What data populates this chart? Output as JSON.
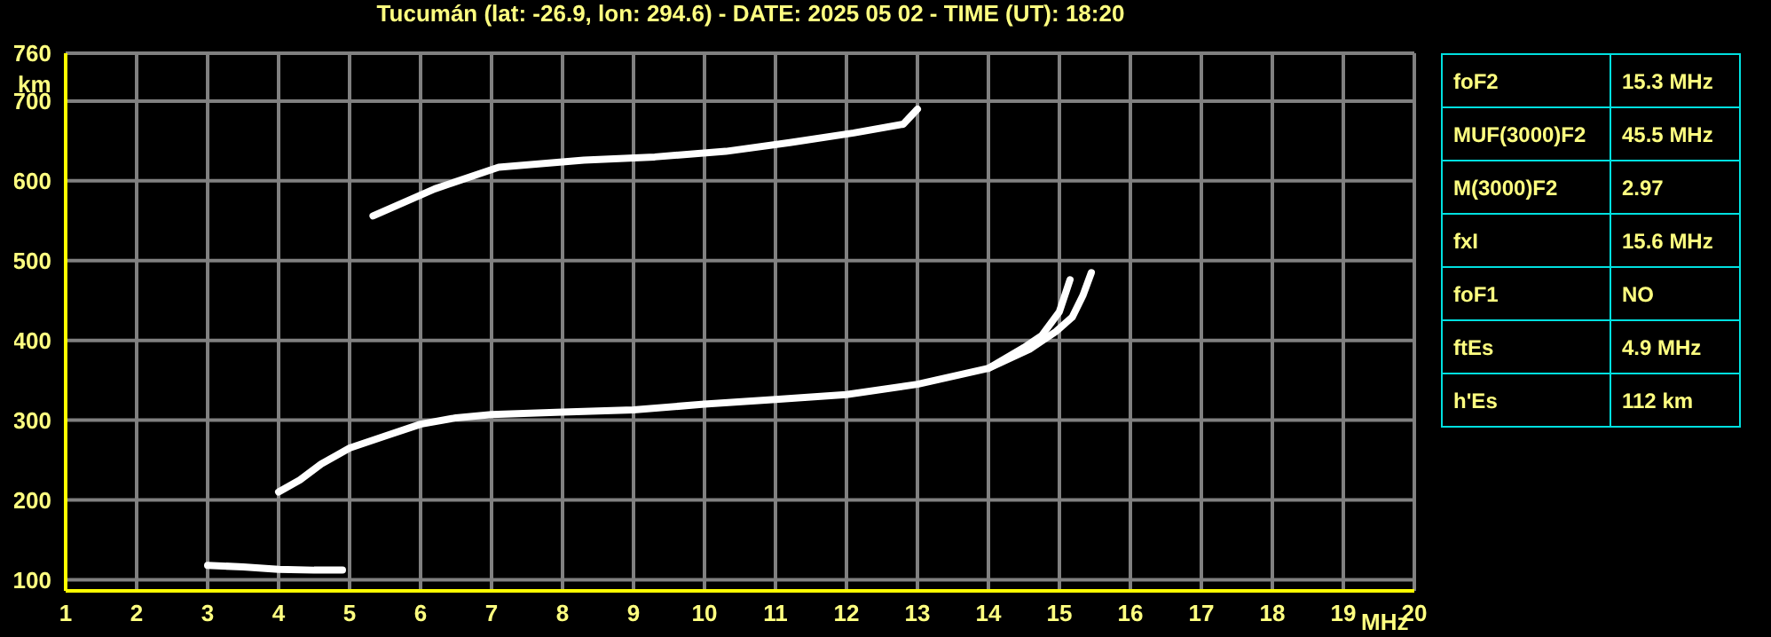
{
  "chart_data": [
    {
      "type": "line",
      "title": "Tucumán (lat: -26.9, lon: 294.6) - DATE: 2025 05 02 - TIME (UT): 18:20",
      "xlabel": "MHz",
      "ylabel": "km",
      "xlim": [
        1,
        20
      ],
      "ylim": [
        86,
        760
      ],
      "xticks": [
        1,
        2,
        3,
        4,
        5,
        6,
        7,
        8,
        9,
        10,
        11,
        12,
        13,
        14,
        15,
        16,
        17,
        18,
        19,
        20
      ],
      "yticks": [
        100,
        200,
        300,
        400,
        500,
        600,
        700,
        760
      ],
      "grid": true,
      "legend": false,
      "marker": "none",
      "line_style": "solid",
      "series": [
        {
          "color": "#ffffff",
          "x": [
            4.0,
            4.3,
            4.6,
            5.0,
            5.5,
            6.0,
            6.5,
            7.0,
            8.0,
            9.0,
            10.0,
            11.0,
            12.0,
            13.0,
            13.5,
            14.0,
            14.5,
            14.75,
            15.0,
            15.15
          ],
          "values": [
            210,
            225,
            245,
            265,
            280,
            295,
            303,
            307,
            310,
            313,
            320,
            326,
            332,
            345,
            355,
            365,
            391,
            406,
            436,
            476
          ]
        },
        {
          "color": "#ffffff",
          "x": [
            14.0,
            14.58,
            14.95,
            15.18,
            15.33,
            15.45
          ],
          "values": [
            365,
            389,
            411,
            429,
            456,
            485
          ]
        },
        {
          "color": "#ffffff",
          "x": [
            5.33,
            6.2,
            7.1,
            8.3,
            9.3,
            10.3,
            11.2,
            12.1,
            12.8,
            13.0
          ],
          "values": [
            556,
            590,
            617,
            626,
            630,
            637,
            648,
            660,
            671,
            690
          ]
        },
        {
          "color": "#ffffff",
          "x": [
            3.0,
            3.5,
            4.0,
            4.5,
            4.9
          ],
          "values": [
            118,
            116,
            113,
            112,
            112
          ]
        }
      ]
    },
    {
      "type": "other",
      "annotations": [
        "foF2",
        "15.3 MHz",
        "MUF(3000)F2",
        "45.5 MHz",
        "M(3000)F2",
        "2.97",
        "fxI",
        "15.6 MHz",
        "foF1",
        "NO",
        "ftEs",
        "4.9 MHz",
        "h'Es",
        "112 km"
      ]
    }
  ]
}
